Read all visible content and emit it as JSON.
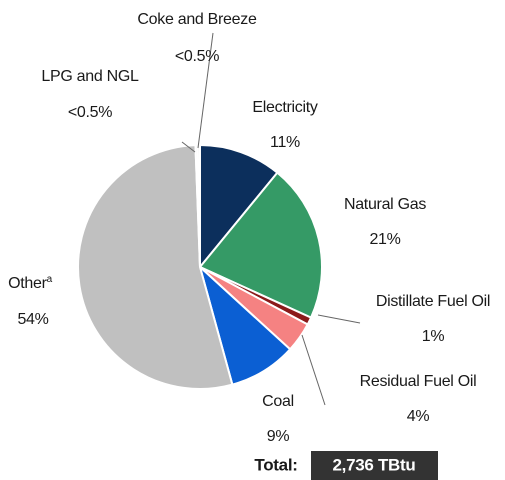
{
  "chart_data": {
    "type": "pie",
    "categories": [
      "Electricity",
      "Natural Gas",
      "Distillate Fuel Oil",
      "Residual Fuel Oil",
      "Coal",
      "Other",
      "LPG and NGL",
      "Coke and Breeze"
    ],
    "category_notes": [
      null,
      null,
      null,
      null,
      null,
      "a",
      null,
      null
    ],
    "values": [
      11,
      21,
      1,
      4,
      9,
      54,
      0.3,
      0.3
    ],
    "value_labels": [
      "11%",
      "21%",
      "1%",
      "4%",
      "9%",
      "54%",
      "<0.5%",
      "<0.5%"
    ],
    "colors": [
      "#0c2f5c",
      "#359a66",
      "#8b1a1a",
      "#f58282",
      "#0b5fd3",
      "#c0c0c0",
      "#e6e6e6",
      "#e6e6e6"
    ],
    "total_label": "Total:",
    "total": "2,736 TBtu"
  }
}
